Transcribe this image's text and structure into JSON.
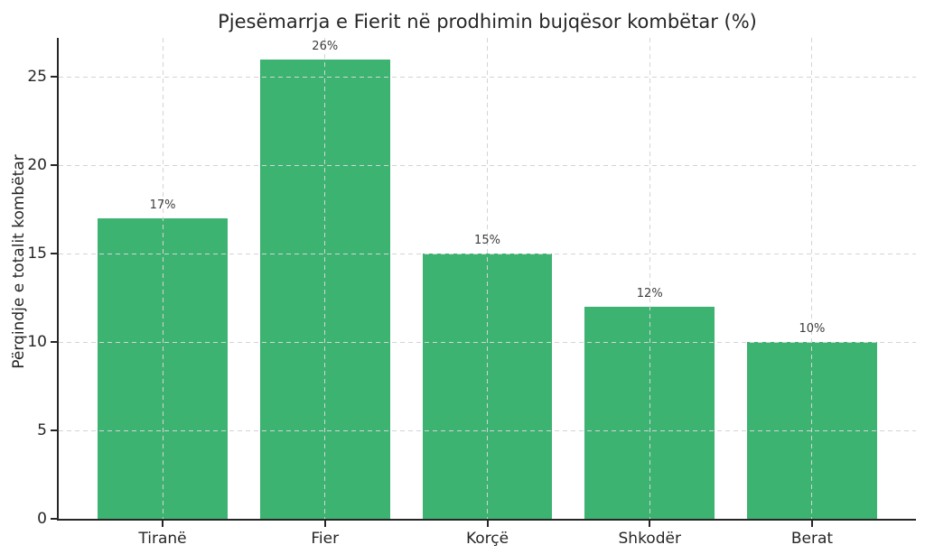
{
  "chart_data": {
    "type": "bar",
    "title": "Pjesëmarrja e Fierit në prodhimin bujqësor kombëtar (%)",
    "categories": [
      "Tiranë",
      "Fier",
      "Korçë",
      "Shkodër",
      "Berat"
    ],
    "values": [
      17,
      26,
      15,
      12,
      10
    ],
    "bar_labels": [
      "17%",
      "26%",
      "15%",
      "12%",
      "10%"
    ],
    "xlabel": "",
    "ylabel": "Përqindje e totalit kombëtar",
    "yticks": [
      0,
      5,
      10,
      15,
      20,
      25
    ],
    "ylim": [
      0,
      27.2
    ],
    "xlim": [
      -0.64,
      4.64
    ],
    "bar_width": 0.8,
    "bar_color": "#3cb371",
    "axis_color": "#262626",
    "grid": {
      "visible": true,
      "style": "dashed",
      "axes": "both",
      "color": "#d4d4d4",
      "on_top": true
    },
    "legend_position": "none",
    "background": "#ffffff"
  }
}
